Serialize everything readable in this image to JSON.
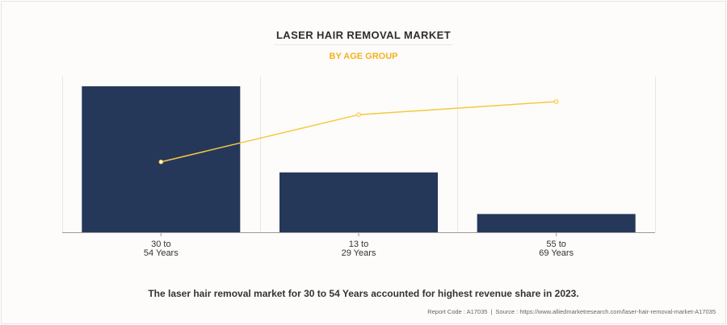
{
  "title": "LASER HAIR REMOVAL MARKET",
  "subtitle": "BY AGE GROUP",
  "caption": "The laser hair removal market for 30 to 54 Years accounted for highest revenue share in 2023.",
  "footer": {
    "report_code": "Report Code : A17035",
    "separator": "|",
    "source": "Source : https://www.alliedmarketresearch.com/laser-hair-removal-market-A17035"
  },
  "colors": {
    "bar": "#25385a",
    "line": "#f5c842",
    "title": "#2e2e2e",
    "subtitle": "#f2b21c"
  },
  "chart_data": {
    "type": "bar",
    "categories": [
      [
        "30 to",
        "54 Years"
      ],
      [
        "13 to",
        "29 Years"
      ],
      [
        "55 to",
        "69 Years"
      ]
    ],
    "series": [
      {
        "type": "bar",
        "values": [
          100,
          41,
          12.5
        ]
      },
      {
        "type": "line",
        "values": [
          40.4,
          67.5,
          75
        ]
      }
    ],
    "ylim": [
      0,
      100
    ],
    "grid": "vertical",
    "legend": "none",
    "y_axis_labels": "none"
  }
}
